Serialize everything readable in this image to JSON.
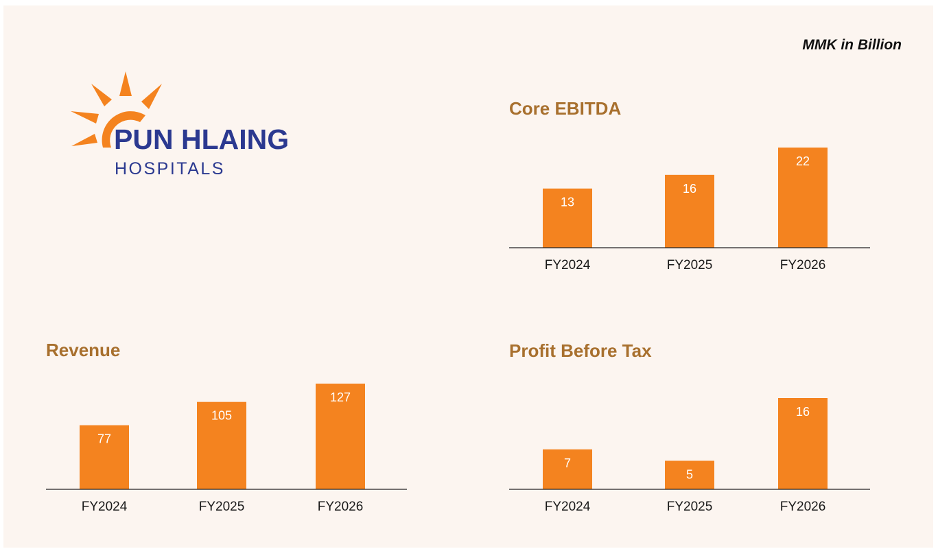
{
  "note": "MMK in Billion",
  "logo": {
    "name": "PUN HLAING",
    "subtitle": "HOSPITALS"
  },
  "chart_data": [
    {
      "type": "bar",
      "title": "Core EBITDA",
      "categories": [
        "FY2024",
        "FY2025",
        "FY2026"
      ],
      "values": [
        13,
        16,
        22
      ],
      "color": "#f4831f"
    },
    {
      "type": "bar",
      "title": "Revenue",
      "categories": [
        "FY2024",
        "FY2025",
        "FY2026"
      ],
      "values": [
        77,
        105,
        127
      ],
      "color": "#f4831f"
    },
    {
      "type": "bar",
      "title": "Profit Before Tax",
      "categories": [
        "FY2024",
        "FY2025",
        "FY2026"
      ],
      "values": [
        7,
        5,
        16
      ],
      "color": "#f4831f"
    }
  ]
}
